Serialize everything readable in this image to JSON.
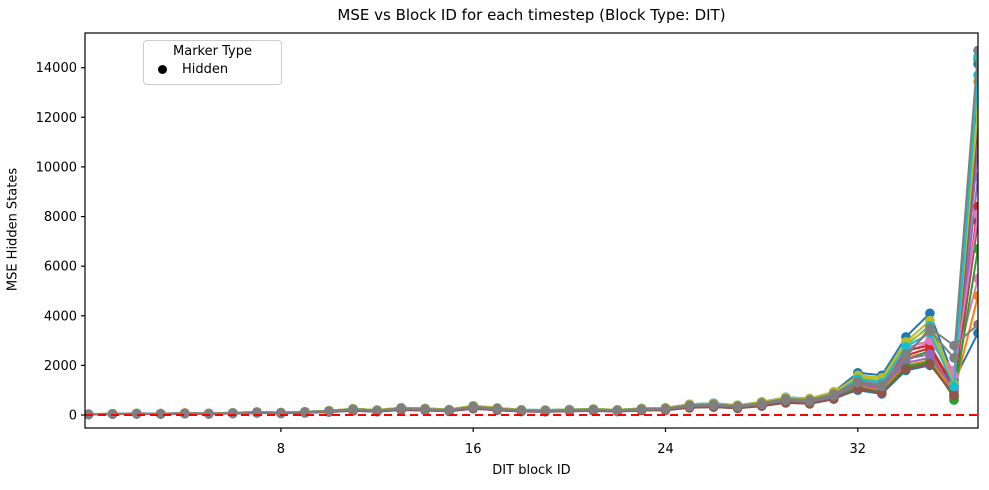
{
  "legend": {
    "title": "Marker Type",
    "items": [
      {
        "label": "Hidden",
        "marker": "circle-icon",
        "color": "#000000"
      }
    ]
  },
  "chart_data": {
    "type": "line",
    "title": "MSE vs Block ID for each timestep (Block Type: DIT)",
    "xlabel": "DIT block ID",
    "ylabel": "MSE Hidden States",
    "grid": false,
    "legend_position": "upper left",
    "xlim": [
      -0.15,
      37.0
    ],
    "ylim": [
      -524,
      15400
    ],
    "xticks": [
      8,
      16,
      24,
      32
    ],
    "yticks": [
      0,
      2000,
      4000,
      6000,
      8000,
      10000,
      12000,
      14000
    ],
    "reference_line": {
      "y": 0,
      "color": "#ff0000",
      "style": "dashed"
    },
    "x": [
      0,
      1,
      2,
      3,
      4,
      5,
      6,
      7,
      8,
      9,
      10,
      11,
      12,
      13,
      14,
      15,
      16,
      17,
      18,
      19,
      20,
      21,
      22,
      23,
      24,
      25,
      26,
      27,
      28,
      29,
      30,
      31,
      32,
      33,
      34,
      35,
      36,
      37
    ],
    "series": [
      {
        "color": "#1f77b4",
        "values": [
          35,
          50,
          65,
          55,
          75,
          65,
          90,
          120,
          100,
          130,
          175,
          255,
          200,
          295,
          265,
          220,
          375,
          285,
          210,
          200,
          220,
          240,
          210,
          265,
          285,
          430,
          475,
          395,
          530,
          715,
          660,
          935,
          1700,
          1600,
          3150,
          4100,
          1500,
          14150
        ]
      },
      {
        "color": "#ff7f0e",
        "values": [
          25,
          40,
          50,
          45,
          60,
          50,
          70,
          95,
          75,
          100,
          135,
          195,
          155,
          230,
          205,
          170,
          290,
          220,
          160,
          155,
          170,
          185,
          160,
          205,
          220,
          330,
          365,
          305,
          410,
          555,
          510,
          720,
          1250,
          1050,
          2300,
          2550,
          1000,
          13450
        ]
      },
      {
        "color": "#2ca02c",
        "values": [
          30,
          45,
          55,
          50,
          65,
          55,
          75,
          105,
          85,
          115,
          150,
          220,
          170,
          255,
          230,
          190,
          325,
          245,
          180,
          170,
          190,
          210,
          180,
          230,
          245,
          370,
          410,
          340,
          455,
          620,
          570,
          810,
          1150,
          950,
          2200,
          2600,
          600,
          14350
        ]
      },
      {
        "color": "#d62728",
        "values": [
          30,
          45,
          60,
          50,
          70,
          60,
          80,
          110,
          90,
          120,
          160,
          230,
          180,
          270,
          240,
          200,
          340,
          260,
          190,
          180,
          200,
          220,
          190,
          240,
          260,
          390,
          430,
          360,
          480,
          650,
          600,
          850,
          1300,
          1100,
          2400,
          2700,
          1100,
          11300
        ]
      },
      {
        "color": "#9467bd",
        "values": [
          20,
          35,
          45,
          40,
          55,
          45,
          60,
          85,
          70,
          90,
          120,
          170,
          135,
          200,
          180,
          150,
          255,
          195,
          140,
          135,
          150,
          165,
          140,
          180,
          195,
          290,
          320,
          270,
          360,
          490,
          450,
          640,
          1200,
          1000,
          2100,
          2300,
          900,
          9600
        ]
      },
      {
        "color": "#8c564b",
        "values": [
          25,
          40,
          55,
          45,
          65,
          55,
          70,
          100,
          80,
          110,
          145,
          205,
          160,
          245,
          215,
          180,
          305,
          235,
          170,
          160,
          180,
          200,
          170,
          215,
          235,
          350,
          385,
          325,
          430,
          585,
          540,
          765,
          1100,
          900,
          1900,
          2100,
          800,
          7800
        ]
      },
      {
        "color": "#e377c2",
        "values": [
          30,
          45,
          65,
          55,
          75,
          65,
          85,
          115,
          95,
          125,
          170,
          240,
          190,
          285,
          250,
          210,
          355,
          275,
          200,
          190,
          210,
          230,
          200,
          250,
          275,
          410,
          450,
          380,
          505,
          680,
          630,
          890,
          1350,
          1150,
          2500,
          2950,
          1800,
          5500
        ]
      },
      {
        "color": "#bcbd22",
        "values": [
          30,
          45,
          60,
          50,
          70,
          60,
          80,
          110,
          90,
          120,
          160,
          240,
          180,
          270,
          240,
          200,
          350,
          260,
          190,
          180,
          200,
          220,
          190,
          240,
          260,
          390,
          430,
          360,
          480,
          670,
          610,
          880,
          1600,
          1500,
          2950,
          3800,
          1300,
          12800
        ]
      },
      {
        "color": "#17becf",
        "values": [
          35,
          50,
          65,
          55,
          75,
          65,
          90,
          120,
          100,
          130,
          175,
          250,
          200,
          290,
          265,
          220,
          370,
          285,
          210,
          200,
          220,
          240,
          210,
          265,
          285,
          430,
          475,
          395,
          530,
          715,
          660,
          920,
          1500,
          1350,
          2800,
          3600,
          1200,
          14450
        ]
      },
      {
        "color": "#1f77b4",
        "values": [
          25,
          35,
          50,
          40,
          55,
          50,
          65,
          90,
          70,
          95,
          130,
          185,
          145,
          215,
          190,
          160,
          270,
          210,
          150,
          145,
          160,
          175,
          150,
          190,
          210,
          310,
          345,
          290,
          385,
          520,
          480,
          680,
          1000,
          850,
          1800,
          2000,
          1400,
          3300
        ]
      },
      {
        "color": "#ff7f0e",
        "values": [
          25,
          40,
          55,
          45,
          65,
          55,
          70,
          100,
          80,
          110,
          145,
          210,
          160,
          245,
          215,
          180,
          300,
          235,
          170,
          160,
          180,
          200,
          170,
          215,
          235,
          350,
          385,
          325,
          430,
          575,
          540,
          765,
          1200,
          1000,
          2000,
          2200,
          950,
          4800
        ]
      },
      {
        "color": "#2ca02c",
        "values": [
          30,
          45,
          55,
          50,
          65,
          55,
          75,
          105,
          85,
          115,
          150,
          215,
          170,
          255,
          230,
          190,
          320,
          245,
          180,
          170,
          190,
          210,
          180,
          230,
          245,
          370,
          410,
          340,
          455,
          620,
          570,
          810,
          1050,
          900,
          1950,
          2150,
          700,
          6700
        ]
      },
      {
        "color": "#d62728",
        "values": [
          30,
          45,
          60,
          50,
          70,
          60,
          80,
          110,
          90,
          120,
          160,
          230,
          180,
          275,
          240,
          200,
          340,
          260,
          190,
          180,
          200,
          220,
          190,
          240,
          260,
          390,
          430,
          360,
          490,
          650,
          600,
          850,
          1400,
          1200,
          2600,
          2800,
          1150,
          8400
        ]
      },
      {
        "color": "#9467bd",
        "values": [
          25,
          40,
          50,
          45,
          60,
          50,
          70,
          95,
          75,
          100,
          135,
          195,
          155,
          230,
          205,
          170,
          285,
          220,
          160,
          155,
          170,
          185,
          160,
          205,
          220,
          330,
          365,
          305,
          410,
          555,
          510,
          720,
          1250,
          1050,
          2250,
          2450,
          1000,
          10700
        ]
      },
      {
        "color": "#8c564b",
        "values": [
          20,
          35,
          45,
          40,
          55,
          45,
          60,
          85,
          70,
          90,
          120,
          170,
          135,
          200,
          180,
          150,
          260,
          195,
          140,
          135,
          150,
          165,
          140,
          180,
          195,
          290,
          320,
          270,
          360,
          490,
          450,
          640,
          1050,
          880,
          1850,
          2050,
          780,
          11900
        ]
      },
      {
        "color": "#e377c2",
        "values": [
          30,
          45,
          65,
          55,
          75,
          65,
          85,
          115,
          95,
          125,
          170,
          240,
          190,
          285,
          250,
          210,
          360,
          275,
          200,
          190,
          210,
          230,
          200,
          250,
          275,
          410,
          450,
          380,
          505,
          690,
          630,
          890,
          1450,
          1250,
          2700,
          3000,
          1600,
          8100
        ]
      },
      {
        "color": "#bcbd22",
        "values": [
          35,
          50,
          65,
          55,
          75,
          65,
          90,
          120,
          100,
          130,
          175,
          255,
          200,
          295,
          265,
          220,
          375,
          285,
          210,
          200,
          220,
          240,
          210,
          265,
          285,
          430,
          465,
          395,
          530,
          700,
          660,
          935,
          1550,
          1400,
          2900,
          3500,
          1250,
          12400
        ]
      },
      {
        "color": "#17becf",
        "values": [
          30,
          45,
          55,
          50,
          65,
          55,
          75,
          105,
          85,
          115,
          150,
          220,
          170,
          255,
          230,
          190,
          325,
          245,
          180,
          170,
          190,
          210,
          180,
          230,
          245,
          370,
          420,
          340,
          455,
          620,
          570,
          810,
          1450,
          1300,
          2750,
          3300,
          1150,
          13700
        ]
      },
      {
        "color": "#7f7f7f",
        "values": [
          25,
          40,
          55,
          45,
          65,
          55,
          70,
          100,
          80,
          110,
          145,
          205,
          160,
          245,
          215,
          180,
          305,
          235,
          170,
          160,
          180,
          200,
          170,
          215,
          235,
          350,
          385,
          325,
          430,
          585,
          540,
          765,
          1300,
          1150,
          2350,
          3500,
          2800,
          3650
        ]
      },
      {
        "color": "#7f7f7f",
        "values": [
          30,
          45,
          60,
          50,
          70,
          60,
          80,
          110,
          90,
          120,
          160,
          230,
          180,
          270,
          240,
          200,
          340,
          260,
          190,
          180,
          200,
          220,
          190,
          240,
          260,
          390,
          430,
          360,
          480,
          650,
          600,
          850,
          1350,
          1200,
          2450,
          3400,
          2300,
          14700
        ]
      }
    ]
  }
}
